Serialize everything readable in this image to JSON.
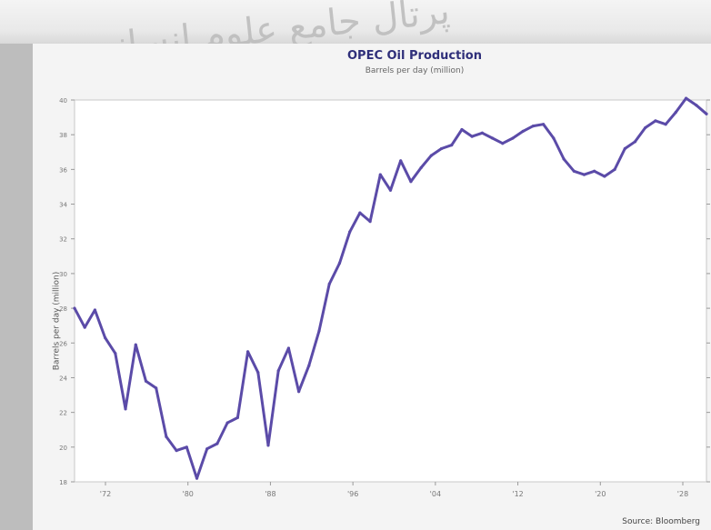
{
  "chart_data": {
    "type": "line",
    "title": "OPEC Oil Production",
    "subtitle": "Barrels per day (million)",
    "ylabel": "Barrels per day (million)",
    "source": "Source: Bloomberg",
    "line_color": "#5b4ba8",
    "x_ticks": [
      "'72",
      "'80",
      "'88",
      "'96",
      "'04",
      "'12",
      "'20",
      "'28"
    ],
    "y_ticks": [
      18,
      20,
      22,
      24,
      26,
      28,
      30,
      32,
      34,
      36,
      38,
      40
    ],
    "ylim": [
      18,
      40
    ],
    "xlim": [
      0,
      62
    ],
    "grid": false,
    "series": [
      {
        "name": "OPEC",
        "points": [
          [
            0,
            28.0
          ],
          [
            1,
            26.9
          ],
          [
            2,
            27.9
          ],
          [
            3,
            26.3
          ],
          [
            4,
            25.4
          ],
          [
            5,
            22.2
          ],
          [
            6,
            25.9
          ],
          [
            7,
            23.8
          ],
          [
            8,
            23.4
          ],
          [
            9,
            20.6
          ],
          [
            10,
            19.8
          ],
          [
            11,
            20.0
          ],
          [
            12,
            18.2
          ],
          [
            13,
            19.9
          ],
          [
            14,
            20.2
          ],
          [
            15,
            21.4
          ],
          [
            16,
            21.7
          ],
          [
            17,
            25.5
          ],
          [
            18,
            24.3
          ],
          [
            19,
            20.1
          ],
          [
            20,
            24.4
          ],
          [
            21,
            25.7
          ],
          [
            22,
            23.2
          ],
          [
            23,
            24.7
          ],
          [
            24,
            26.7
          ],
          [
            25,
            29.4
          ],
          [
            26,
            30.6
          ],
          [
            27,
            32.4
          ],
          [
            28,
            33.5
          ],
          [
            29,
            33.0
          ],
          [
            30,
            35.7
          ],
          [
            31,
            34.8
          ],
          [
            32,
            36.5
          ],
          [
            33,
            35.3
          ],
          [
            34,
            36.1
          ],
          [
            35,
            36.8
          ],
          [
            36,
            37.2
          ],
          [
            37,
            37.4
          ],
          [
            38,
            38.3
          ],
          [
            39,
            37.9
          ],
          [
            40,
            38.1
          ],
          [
            41,
            37.8
          ],
          [
            42,
            37.5
          ],
          [
            43,
            37.8
          ],
          [
            44,
            38.2
          ],
          [
            45,
            38.5
          ],
          [
            46,
            38.6
          ],
          [
            47,
            37.8
          ],
          [
            48,
            36.6
          ],
          [
            49,
            35.9
          ],
          [
            50,
            35.7
          ],
          [
            51,
            35.9
          ],
          [
            52,
            35.6
          ],
          [
            53,
            36.0
          ],
          [
            54,
            37.2
          ],
          [
            55,
            37.6
          ],
          [
            56,
            38.4
          ],
          [
            57,
            38.8
          ],
          [
            58,
            38.6
          ],
          [
            59,
            39.3
          ],
          [
            60,
            40.1
          ],
          [
            61,
            39.7
          ],
          [
            62,
            39.2
          ]
        ]
      }
    ]
  },
  "watermark": "پرتال جامع علوم انسانی"
}
